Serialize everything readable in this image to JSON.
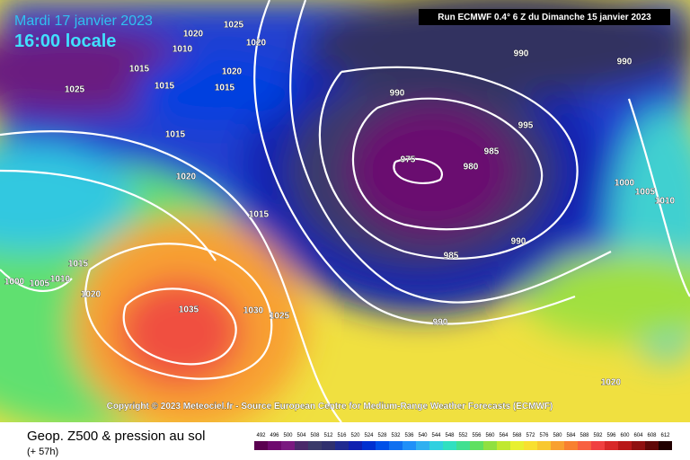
{
  "header": {
    "date": "Mardi 17 janvier 2023",
    "time": "16:00 locale",
    "run": "Run ECMWF 0.4° 6 Z du Dimanche 15 janvier 2023",
    "copyright": "Copyright © 2023 Meteociel.fr - Source European Centre for Medium-Range Weather Forecasts (ECMWF)"
  },
  "map": {
    "isobar_labels": [
      "1025",
      "1020",
      "1010",
      "1020",
      "1015",
      "1025",
      "1015",
      "1020",
      "1015",
      "1015",
      "1020",
      "990",
      "990",
      "990",
      "995",
      "985",
      "975",
      "980",
      "1000",
      "1005",
      "1010",
      "1015",
      "990",
      "985",
      "1015",
      "1000",
      "1005",
      "1010",
      "1020",
      "1035",
      "1030",
      "1025",
      "990",
      "1020"
    ]
  },
  "footer": {
    "title": "Geop. Z500 & pression au sol",
    "lead": "(+ 57h)",
    "legend": {
      "ticks": [
        492,
        496,
        500,
        504,
        508,
        512,
        516,
        520,
        524,
        528,
        532,
        536,
        540,
        544,
        548,
        552,
        556,
        560,
        564,
        568,
        572,
        576,
        580,
        584,
        588,
        592,
        596,
        600,
        604,
        608,
        612
      ],
      "colors": [
        "#5a0050",
        "#6e0a6e",
        "#7a1a80",
        "#4a2a6a",
        "#3a3a6a",
        "#30306e",
        "#202a90",
        "#1020b0",
        "#0030d0",
        "#0050e8",
        "#1070f0",
        "#2090f8",
        "#30b0f0",
        "#30d0e0",
        "#30e0c0",
        "#40e090",
        "#60e060",
        "#90e040",
        "#c0e830",
        "#e8f030",
        "#f8e030",
        "#f8c830",
        "#f8a030",
        "#f88030",
        "#f86040",
        "#f04040",
        "#d82828",
        "#b81818",
        "#901010",
        "#600808",
        "#200000"
      ]
    }
  }
}
